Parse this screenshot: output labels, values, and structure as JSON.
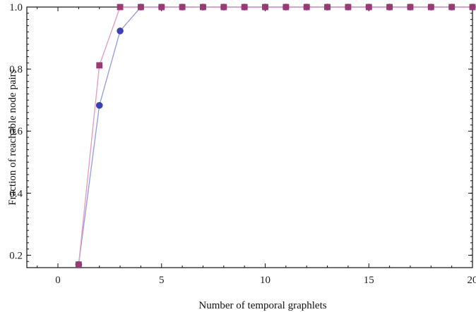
{
  "chart_data": {
    "type": "line",
    "title": "",
    "xlabel": "Number of temporal graphlets",
    "ylabel": "Fraction of reachable node pairs",
    "xlim": [
      -1.5,
      20
    ],
    "ylim": [
      0.16,
      1.0
    ],
    "x_ticks": [
      0,
      5,
      10,
      15,
      20
    ],
    "y_ticks": [
      0.2,
      0.4,
      0.6,
      0.8,
      1.0
    ],
    "grid": false,
    "series": [
      {
        "marker": "circle",
        "color": "#3a3fb4",
        "line_color": "#9a9ee2",
        "x": [
          1,
          2,
          3,
          4,
          5,
          6,
          7,
          8,
          9,
          10,
          11,
          12,
          13,
          14,
          15,
          16,
          17,
          18,
          19,
          20
        ],
        "values": [
          0.17,
          0.683,
          0.923,
          1.0,
          1.0,
          1.0,
          1.0,
          1.0,
          1.0,
          1.0,
          1.0,
          1.0,
          1.0,
          1.0,
          1.0,
          1.0,
          1.0,
          1.0,
          1.0,
          1.0
        ]
      },
      {
        "marker": "square",
        "color": "#9a3a72",
        "line_color": "#e0a0c2",
        "x": [
          1,
          2,
          3,
          4,
          5,
          6,
          7,
          8,
          9,
          10,
          11,
          12,
          13,
          14,
          15,
          16,
          17,
          18,
          19,
          20
        ],
        "values": [
          0.17,
          0.812,
          1.0,
          1.0,
          1.0,
          1.0,
          1.0,
          1.0,
          1.0,
          1.0,
          1.0,
          1.0,
          1.0,
          1.0,
          1.0,
          1.0,
          1.0,
          1.0,
          1.0,
          1.0
        ]
      }
    ]
  }
}
